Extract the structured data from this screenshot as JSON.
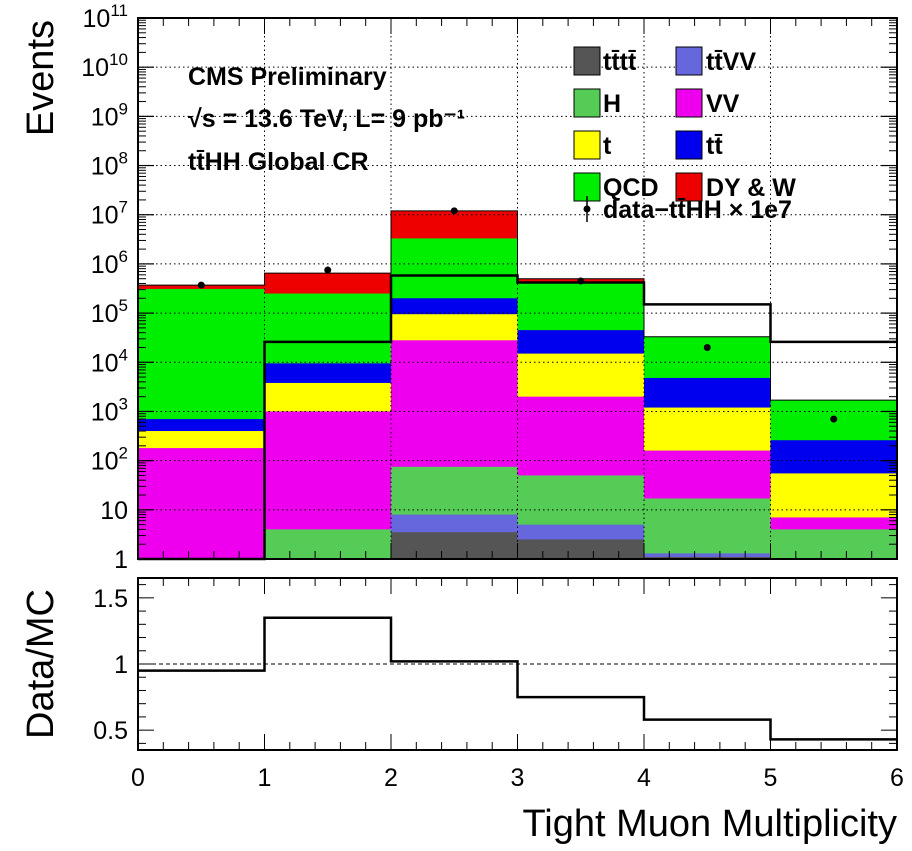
{
  "chart_data": [
    {
      "type": "bar",
      "stacked": true,
      "scale": "log",
      "title": "",
      "ylabel": "Events",
      "xlabel": "Tight Muon Multiplicity",
      "xlim": [
        0,
        6
      ],
      "ylim": [
        1,
        100000000000
      ],
      "bin_edges": [
        0,
        1,
        2,
        3,
        4,
        5,
        6
      ],
      "x_ticks": [
        "0",
        "1",
        "2",
        "3",
        "4",
        "5",
        "6"
      ],
      "y_ticks": [
        {
          "value": 1,
          "base": "1",
          "exp": ""
        },
        {
          "value": 10,
          "base": "10",
          "exp": ""
        },
        {
          "value": 100,
          "base": "10",
          "exp": "2"
        },
        {
          "value": 1000,
          "base": "10",
          "exp": "3"
        },
        {
          "value": 10000,
          "base": "10",
          "exp": "4"
        },
        {
          "value": 100000,
          "base": "10",
          "exp": "5"
        },
        {
          "value": 1000000,
          "base": "10",
          "exp": "6"
        },
        {
          "value": 10000000,
          "base": "10",
          "exp": "7"
        },
        {
          "value": 100000000,
          "base": "10",
          "exp": "8"
        },
        {
          "value": 1000000000,
          "base": "10",
          "exp": "9"
        },
        {
          "value": 10000000000,
          "base": "10",
          "exp": "10"
        },
        {
          "value": 100000000000,
          "base": "10",
          "exp": "11"
        }
      ],
      "grid": true,
      "legend_position": "top-right",
      "stack_tops": [
        {
          "name": "tt̄tt̄",
          "color": "#555555",
          "values": [
            0,
            0,
            3.5,
            2.5,
            1.1,
            0
          ]
        },
        {
          "name": "tt̄VV",
          "color": "#6666dd",
          "values": [
            0,
            0,
            8,
            5,
            1.3,
            0
          ]
        },
        {
          "name": "H",
          "color": "#55cc55",
          "values": [
            0,
            4,
            75,
            50,
            17,
            4
          ]
        },
        {
          "name": "VV",
          "color": "#ee00ee",
          "values": [
            180,
            1000,
            28000,
            2000,
            160,
            7
          ]
        },
        {
          "name": "t",
          "color": "#ffff00",
          "values": [
            400,
            3800,
            95000,
            15000,
            1200,
            55
          ]
        },
        {
          "name": "tt̄",
          "color": "#0000ee",
          "values": [
            700,
            9500,
            200000,
            45000,
            4800,
            260
          ]
        },
        {
          "name": "QCD",
          "color": "#00ee00",
          "values": [
            310000,
            250000,
            3300000,
            400000,
            33000,
            1700
          ]
        },
        {
          "name": "DY & W",
          "color": "#ee0000",
          "values": [
            370000,
            650000,
            12000000,
            500000,
            33000,
            1700
          ]
        }
      ],
      "data_series": {
        "name": "data−tt̄HH × 1e7",
        "values": [
          370000,
          750000,
          12000000,
          450000,
          20000,
          700
        ]
      },
      "signal_series": {
        "name": "tt̄HH",
        "values": [
          1,
          26000,
          580000,
          420000,
          150000,
          26000
        ]
      },
      "annotations": [
        "CMS Preliminary",
        "√s = 13.6 TeV, L= 9 pb⁻¹",
        "tt̄HH Global CR"
      ],
      "legend": {
        "left": [
          {
            "label": "tt̄tt̄",
            "color": "#555555"
          },
          {
            "label": "H",
            "color": "#55cc55"
          },
          {
            "label": "t",
            "color": "#ffff00"
          },
          {
            "label": "QCD",
            "color": "#00ee00"
          }
        ],
        "right": [
          {
            "label": "tt̄VV",
            "color": "#6666dd"
          },
          {
            "label": "VV",
            "color": "#ee00ee"
          },
          {
            "label": "tt̄",
            "color": "#0000ee"
          },
          {
            "label": "DY & W",
            "color": "#ee0000"
          }
        ],
        "data_label": "data−tt̄HH × 1e7"
      }
    },
    {
      "type": "line",
      "ylabel": "Data/MC",
      "xlabel": "Tight Muon Multiplicity",
      "xlim": [
        0,
        6
      ],
      "ylim": [
        0.35,
        1.65
      ],
      "y_ticks": [
        "0.5",
        "1",
        "1.5"
      ],
      "reference_line": 1,
      "values": [
        0.95,
        1.35,
        1.02,
        0.75,
        0.58,
        0.43
      ]
    }
  ]
}
